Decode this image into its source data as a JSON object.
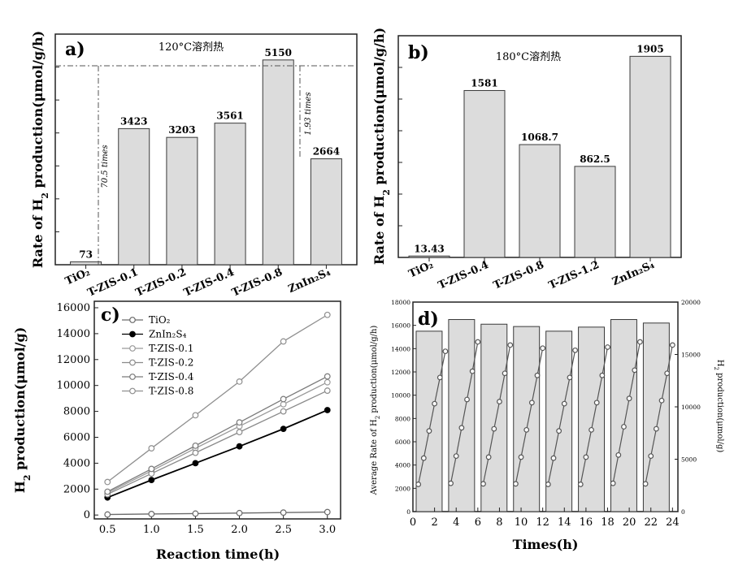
{
  "colors": {
    "axis": "#222222",
    "bar_fill": "#dcdcdc",
    "bar_stroke": "#3a3a3a",
    "tio2": "#6a6a6a",
    "znin2s4": "#000000",
    "tzis_01": "#9a9a9a",
    "tzis_02": "#8a8a8a",
    "tzis_04": "#7a7a7a",
    "tzis_08": "#8f8f8f",
    "cycle_line": "#555555",
    "background": "#ffffff"
  },
  "chart_data": [
    {
      "panel": "a",
      "type": "bar",
      "panel_label": "a)",
      "title": "120°C溶剂热",
      "ylabel": "Rate of H2 production(μmol/g/h)",
      "categories": [
        "TiO2",
        "T-ZIS-0.1",
        "T-ZIS-0.2",
        "T-ZIS-0.4",
        "T-ZIS-0.8",
        "ZnIn2S4"
      ],
      "values": [
        73,
        3423,
        3203,
        3561,
        5150,
        2664
      ],
      "data_labels": [
        "73",
        "3423",
        "3203",
        "3561",
        "5150",
        "2664"
      ],
      "ylim": [
        0,
        5800
      ],
      "annotations": [
        "70.5 times",
        "1.93 times"
      ]
    },
    {
      "panel": "b",
      "type": "bar",
      "panel_label": "b)",
      "title": "180°C溶剂热",
      "ylabel": "Rate of H2 production(μmol/g/h)",
      "categories": [
        "TiO2",
        "T-ZIS-0.4",
        "T-ZIS-0.8",
        "T-ZIS-1.2",
        "ZnIn2S4"
      ],
      "values": [
        13.43,
        1581,
        1068.7,
        862.5,
        1905
      ],
      "data_labels": [
        "13.43",
        "1581",
        "1068.7",
        "862.5",
        "1905"
      ],
      "ylim": [
        0,
        2100
      ]
    },
    {
      "panel": "c",
      "type": "line",
      "panel_label": "c)",
      "xlabel": "Reaction time(h)",
      "ylabel": "H2 production(μmol/g)",
      "x": [
        0.5,
        1.0,
        1.5,
        2.0,
        2.5,
        3.0
      ],
      "xticks": [
        "0.5",
        "1.0",
        "1.5",
        "2.0",
        "2.5",
        "3.0"
      ],
      "yticks": [
        "0",
        "2000",
        "4000",
        "6000",
        "8000",
        "10000",
        "12000",
        "14000",
        "16000"
      ],
      "xlim": [
        0.35,
        3.15
      ],
      "ylim": [
        -300,
        16500
      ],
      "legend_position": "top-left",
      "series": [
        {
          "name": "TiO2",
          "legend": "TiO₂",
          "values": [
            40,
            80,
            110,
            150,
            190,
            230
          ]
        },
        {
          "name": "ZnIn2S4",
          "legend": "ZnIn₂S₄",
          "values": [
            1350,
            2700,
            4000,
            5300,
            6650,
            8100
          ]
        },
        {
          "name": "T-ZIS-0.1",
          "legend": "T-ZIS-0.1",
          "values": [
            1700,
            3400,
            5150,
            6850,
            8550,
            10250
          ]
        },
        {
          "name": "T-ZIS-0.2",
          "legend": "T-ZIS-0.2",
          "values": [
            1600,
            3200,
            4800,
            6400,
            8000,
            9600
          ]
        },
        {
          "name": "T-ZIS-0.4",
          "legend": "T-ZIS-0.4",
          "values": [
            1800,
            3560,
            5350,
            7150,
            8950,
            10700
          ]
        },
        {
          "name": "T-ZIS-0.8",
          "legend": "T-ZIS-0.8",
          "values": [
            2550,
            5150,
            7700,
            10300,
            13400,
            15450
          ]
        }
      ]
    },
    {
      "panel": "d",
      "type": "bar",
      "panel_label": "d)",
      "xlabel": "Times(h)",
      "ylabel": "Average Rate of H2 production(μmol/g/h)",
      "y2label": "H2 production(μmol/g)",
      "xticks": [
        "0",
        "2",
        "4",
        "6",
        "8",
        "10",
        "12",
        "14",
        "16",
        "18",
        "20",
        "22",
        "24"
      ],
      "yticks": [
        "0",
        "2000",
        "4000",
        "6000",
        "8000",
        "10000",
        "12000",
        "14000",
        "16000",
        "18000"
      ],
      "y2ticks": [
        "0",
        "5000",
        "10000",
        "15000",
        "20000"
      ],
      "xlim": [
        0,
        24.5
      ],
      "ylim": [
        0,
        18000
      ],
      "y2lim": [
        0,
        20000
      ],
      "bars": {
        "x": [
          1.5,
          4.5,
          7.5,
          10.5,
          13.5,
          16.5,
          19.5,
          22.5
        ],
        "values": [
          15500,
          16500,
          16100,
          15900,
          15500,
          15850,
          16500,
          16200
        ]
      },
      "cycles": [
        {
          "x": [
            0.5,
            1.0,
            1.5,
            2.0,
            2.5,
            3.0
          ],
          "values": [
            2600,
            5100,
            7700,
            10300,
            12800,
            15300
          ]
        },
        {
          "x": [
            3.5,
            4.0,
            4.5,
            5.0,
            5.5,
            6.0
          ],
          "values": [
            2700,
            5300,
            8000,
            10700,
            13400,
            16200
          ]
        },
        {
          "x": [
            6.5,
            7.0,
            7.5,
            8.0,
            8.5,
            9.0
          ],
          "values": [
            2650,
            5200,
            7900,
            10500,
            13200,
            15900
          ]
        },
        {
          "x": [
            9.5,
            10.0,
            10.5,
            11.0,
            11.5,
            12.0
          ],
          "values": [
            2650,
            5200,
            7800,
            10400,
            13000,
            15600
          ]
        },
        {
          "x": [
            12.5,
            13.0,
            13.5,
            14.0,
            14.5,
            15.0
          ],
          "values": [
            2600,
            5100,
            7700,
            10300,
            12800,
            15400
          ]
        },
        {
          "x": [
            15.5,
            16.0,
            16.5,
            17.0,
            17.5,
            18.0
          ],
          "values": [
            2600,
            5200,
            7800,
            10400,
            13000,
            15700
          ]
        },
        {
          "x": [
            18.5,
            19.0,
            19.5,
            20.0,
            20.5,
            21.0
          ],
          "values": [
            2700,
            5400,
            8100,
            10800,
            13500,
            16200
          ]
        },
        {
          "x": [
            21.5,
            22.0,
            22.5,
            23.0,
            23.5,
            24.0
          ],
          "values": [
            2650,
            5300,
            7900,
            10600,
            13200,
            15900
          ]
        }
      ]
    }
  ]
}
